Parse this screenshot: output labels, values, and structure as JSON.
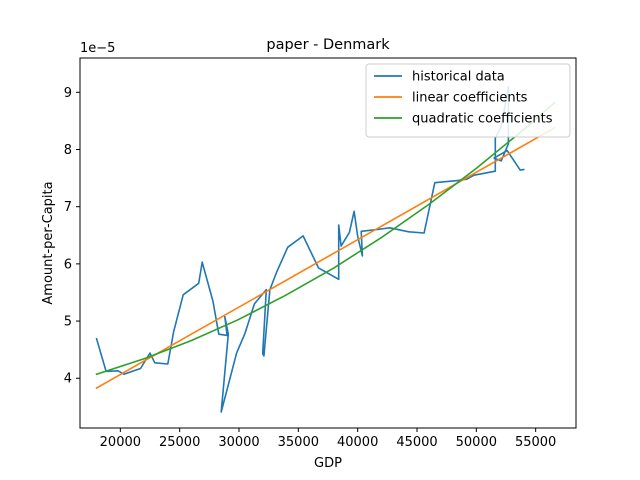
{
  "chart_data": {
    "type": "line",
    "title": "paper - Denmark",
    "xlabel": "GDP",
    "ylabel": "Amount-per-Capita",
    "y_offset_label": "1e−5",
    "xlim": [
      16600,
      58400
    ],
    "ylim": [
      3.13,
      9.6
    ],
    "x_ticks": [
      20000,
      25000,
      30000,
      35000,
      40000,
      45000,
      50000,
      55000
    ],
    "x_tick_labels": [
      "20000",
      "25000",
      "30000",
      "35000",
      "40000",
      "45000",
      "50000",
      "55000"
    ],
    "y_ticks": [
      4,
      5,
      6,
      7,
      8,
      9
    ],
    "y_tick_labels": [
      "4",
      "5",
      "6",
      "7",
      "8",
      "9"
    ],
    "grid": false,
    "legend_position": "top-right",
    "series": [
      {
        "name": "historical data",
        "color": "#1f77b4",
        "points": [
          [
            18000,
            4.69
          ],
          [
            18800,
            4.12
          ],
          [
            19800,
            4.13
          ],
          [
            20300,
            4.07
          ],
          [
            21700,
            4.17
          ],
          [
            22500,
            4.44
          ],
          [
            22900,
            4.27
          ],
          [
            24000,
            4.25
          ],
          [
            24500,
            4.82
          ],
          [
            25300,
            5.46
          ],
          [
            26600,
            5.66
          ],
          [
            26900,
            6.03
          ],
          [
            27800,
            5.35
          ],
          [
            28300,
            4.77
          ],
          [
            29000,
            4.75
          ],
          [
            28800,
            5.08
          ],
          [
            29100,
            4.77
          ],
          [
            28500,
            3.41
          ],
          [
            29800,
            4.44
          ],
          [
            30500,
            4.78
          ],
          [
            31300,
            5.3
          ],
          [
            32300,
            5.55
          ],
          [
            32000,
            4.43
          ],
          [
            32100,
            4.39
          ],
          [
            32600,
            5.55
          ],
          [
            33200,
            5.87
          ],
          [
            34100,
            6.29
          ],
          [
            35400,
            6.49
          ],
          [
            36700,
            5.93
          ],
          [
            38400,
            5.73
          ],
          [
            38400,
            6.68
          ],
          [
            38600,
            6.31
          ],
          [
            39300,
            6.55
          ],
          [
            39700,
            6.92
          ],
          [
            40000,
            6.48
          ],
          [
            40400,
            6.14
          ],
          [
            40300,
            6.57
          ],
          [
            41600,
            6.6
          ],
          [
            42700,
            6.63
          ],
          [
            44300,
            6.56
          ],
          [
            45600,
            6.54
          ],
          [
            46500,
            7.42
          ],
          [
            48500,
            7.46
          ],
          [
            49200,
            7.48
          ],
          [
            49800,
            7.55
          ],
          [
            51600,
            7.62
          ],
          [
            51600,
            8.2
          ],
          [
            52100,
            8.4
          ],
          [
            52700,
            9.1
          ],
          [
            52700,
            8.1
          ],
          [
            52100,
            7.8
          ],
          [
            51500,
            7.85
          ],
          [
            52600,
            7.98
          ],
          [
            53700,
            7.64
          ],
          [
            54000,
            7.65
          ]
        ]
      },
      {
        "name": "linear coefficients",
        "color": "#ff7f0e",
        "points": [
          [
            18000,
            3.83
          ],
          [
            56600,
            8.38
          ]
        ]
      },
      {
        "name": "quadratic coefficients",
        "color": "#2ca02c",
        "points": [
          [
            18000,
            4.07
          ],
          [
            22000,
            4.34
          ],
          [
            26000,
            4.66
          ],
          [
            30000,
            5.03
          ],
          [
            34000,
            5.46
          ],
          [
            38000,
            5.93
          ],
          [
            42000,
            6.46
          ],
          [
            46000,
            7.04
          ],
          [
            50000,
            7.67
          ],
          [
            54000,
            8.35
          ],
          [
            56600,
            8.82
          ]
        ]
      }
    ]
  }
}
